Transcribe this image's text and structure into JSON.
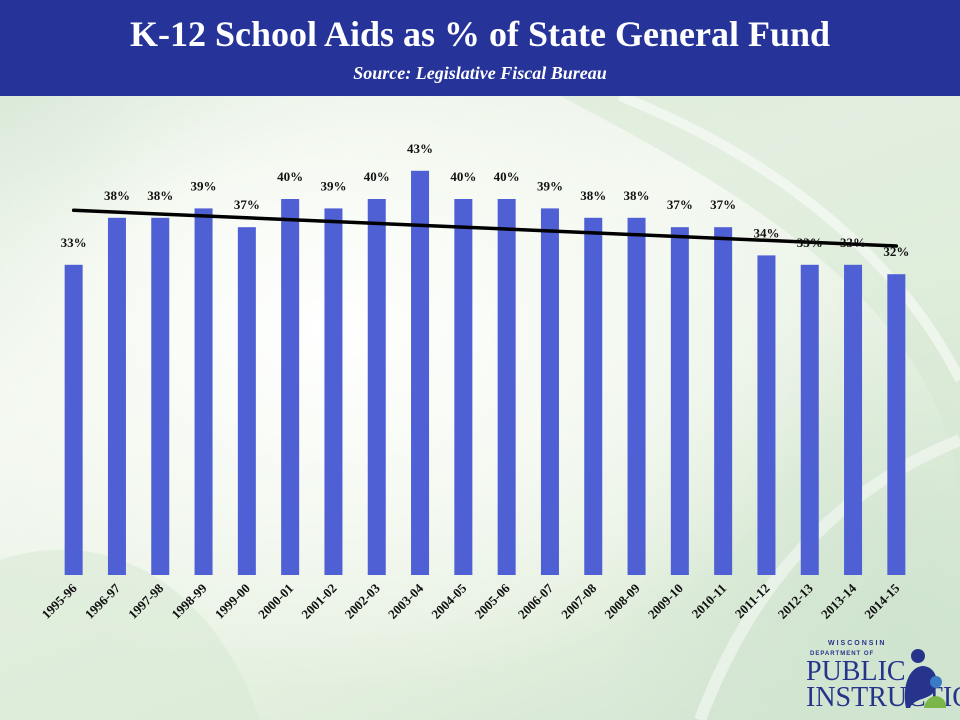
{
  "header": {
    "title": "K-12 School Aids as % of State General Fund",
    "subtitle": "Source: Legislative Fiscal Bureau"
  },
  "colors": {
    "header_bg": "#26349a",
    "bar": "#4f5fd4",
    "trendline": "#000000"
  },
  "chart_data": {
    "type": "bar",
    "title": "K-12 School Aids as % of State General Fund",
    "subtitle": "Source: Legislative Fiscal Bureau",
    "categories": [
      "1995-96",
      "1996-97",
      "1997-98",
      "1998-99",
      "1999-00",
      "2000-01",
      "2001-02",
      "2002-03",
      "2003-04",
      "2004-05",
      "2005-06",
      "2006-07",
      "2007-08",
      "2008-09",
      "2009-10",
      "2010-11",
      "2011-12",
      "2012-13",
      "2013-14",
      "2014-15"
    ],
    "values": [
      33,
      38,
      38,
      39,
      37,
      40,
      39,
      40,
      43,
      40,
      40,
      39,
      38,
      38,
      37,
      37,
      34,
      33,
      33,
      32
    ],
    "data_labels": [
      "33%",
      "38%",
      "38%",
      "39%",
      "37%",
      "40%",
      "39%",
      "40%",
      "43%",
      "40%",
      "40%",
      "39%",
      "38%",
      "38%",
      "37%",
      "37%",
      "34%",
      "33%",
      "33%",
      "32%"
    ],
    "trendline": {
      "type": "linear",
      "start": 38.8,
      "end": 35.0
    },
    "ylim": [
      0,
      50
    ],
    "grid": false,
    "legend": "none",
    "xlabel": "",
    "ylabel": ""
  },
  "logo": {
    "line1": "WISCONSIN",
    "line2": "DEPARTMENT OF",
    "line3": "PUBLIC",
    "line4": "INSTRUCTION"
  }
}
